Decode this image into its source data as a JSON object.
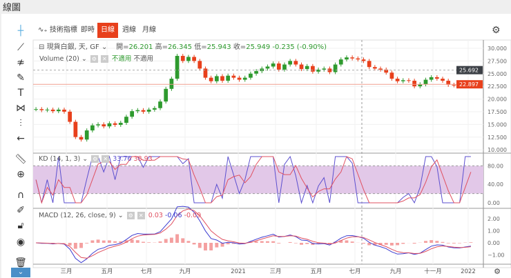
{
  "window": {
    "title": "線圖"
  },
  "toolbar": {
    "indicators": "技術指標",
    "tabs": [
      "即時",
      "日線",
      "週線",
      "月線"
    ],
    "active": "日線"
  },
  "symbol": {
    "name": "現貨白銀, 天, GF",
    "open_label": "開=",
    "open": "26.201",
    "high_label": "高=",
    "high": "26.345",
    "low_label": "低=",
    "low": "25.943",
    "close_label": "收=",
    "close": "25.949",
    "change": "-0.235 (-0.90%)"
  },
  "volume": {
    "label": "Volume (20)",
    "na1": "不適用",
    "na2": "不適用"
  },
  "kd": {
    "label": "KD (14, 1, 3)",
    "k": "33.76",
    "d": "38.93",
    "colors": {
      "k": "#5b4fcf",
      "d": "#e05060"
    }
  },
  "macd": {
    "label": "MACD (12, 26, close, 9)",
    "hist": "0.03",
    "macd": "-0.06",
    "signal": "-0.09",
    "axis": [
      "2.00",
      "1.00",
      "0.00",
      "−1.00"
    ]
  },
  "price_axis": [
    "30.000",
    "27.500",
    "25.000",
    "22.500",
    "20.000",
    "17.500",
    "15.000",
    "12.500",
    "10.000"
  ],
  "kd_axis": [
    "80.00",
    "40.00",
    "0.00"
  ],
  "price_tags": {
    "dashed": "25.692",
    "last": "22.897"
  },
  "x_axis": [
    "三月",
    "五月",
    "七月",
    "九月",
    "2021",
    "三月",
    "五月",
    "七月",
    "九月",
    "十一月",
    "2022"
  ],
  "colors": {
    "up": "#2e9a2e",
    "down": "#e8401c",
    "accent": "#e8401c"
  },
  "chart_data": {
    "type": "candlestick",
    "closes": [
      18,
      17.8,
      17.9,
      17.6,
      17.9,
      17.5,
      15.5,
      12.5,
      12,
      13.8,
      14.8,
      15,
      14.6,
      15.2,
      14.9,
      15.3,
      16.5,
      17.6,
      17.8,
      17.5,
      17.9,
      18.2,
      19.5,
      22,
      24,
      28.5,
      27.5,
      28.3,
      27.5,
      26,
      24.2,
      23.5,
      24.5,
      23.6,
      24.6,
      24.2,
      23.8,
      24.2,
      25,
      25.5,
      26,
      26.4,
      27,
      25.8,
      26.8,
      27.5,
      26.8,
      25.9,
      26.5,
      25.4,
      25.8,
      26,
      25.3,
      26.8,
      27.8,
      28.2,
      28,
      27.8,
      27.5,
      26.3,
      26,
      25.8,
      25.2,
      24,
      23.5,
      23.7,
      23.6,
      22.5,
      22.9,
      23.8,
      24.3,
      24,
      23.6,
      22.8,
      22.7,
      22.6,
      22.9,
      22.9
    ],
    "ylim": [
      10,
      30
    ],
    "x_ticks": [
      "三月",
      "五月",
      "七月",
      "九月",
      "2021",
      "三月",
      "五月",
      "七月",
      "九月",
      "十一月",
      "2022"
    ]
  }
}
